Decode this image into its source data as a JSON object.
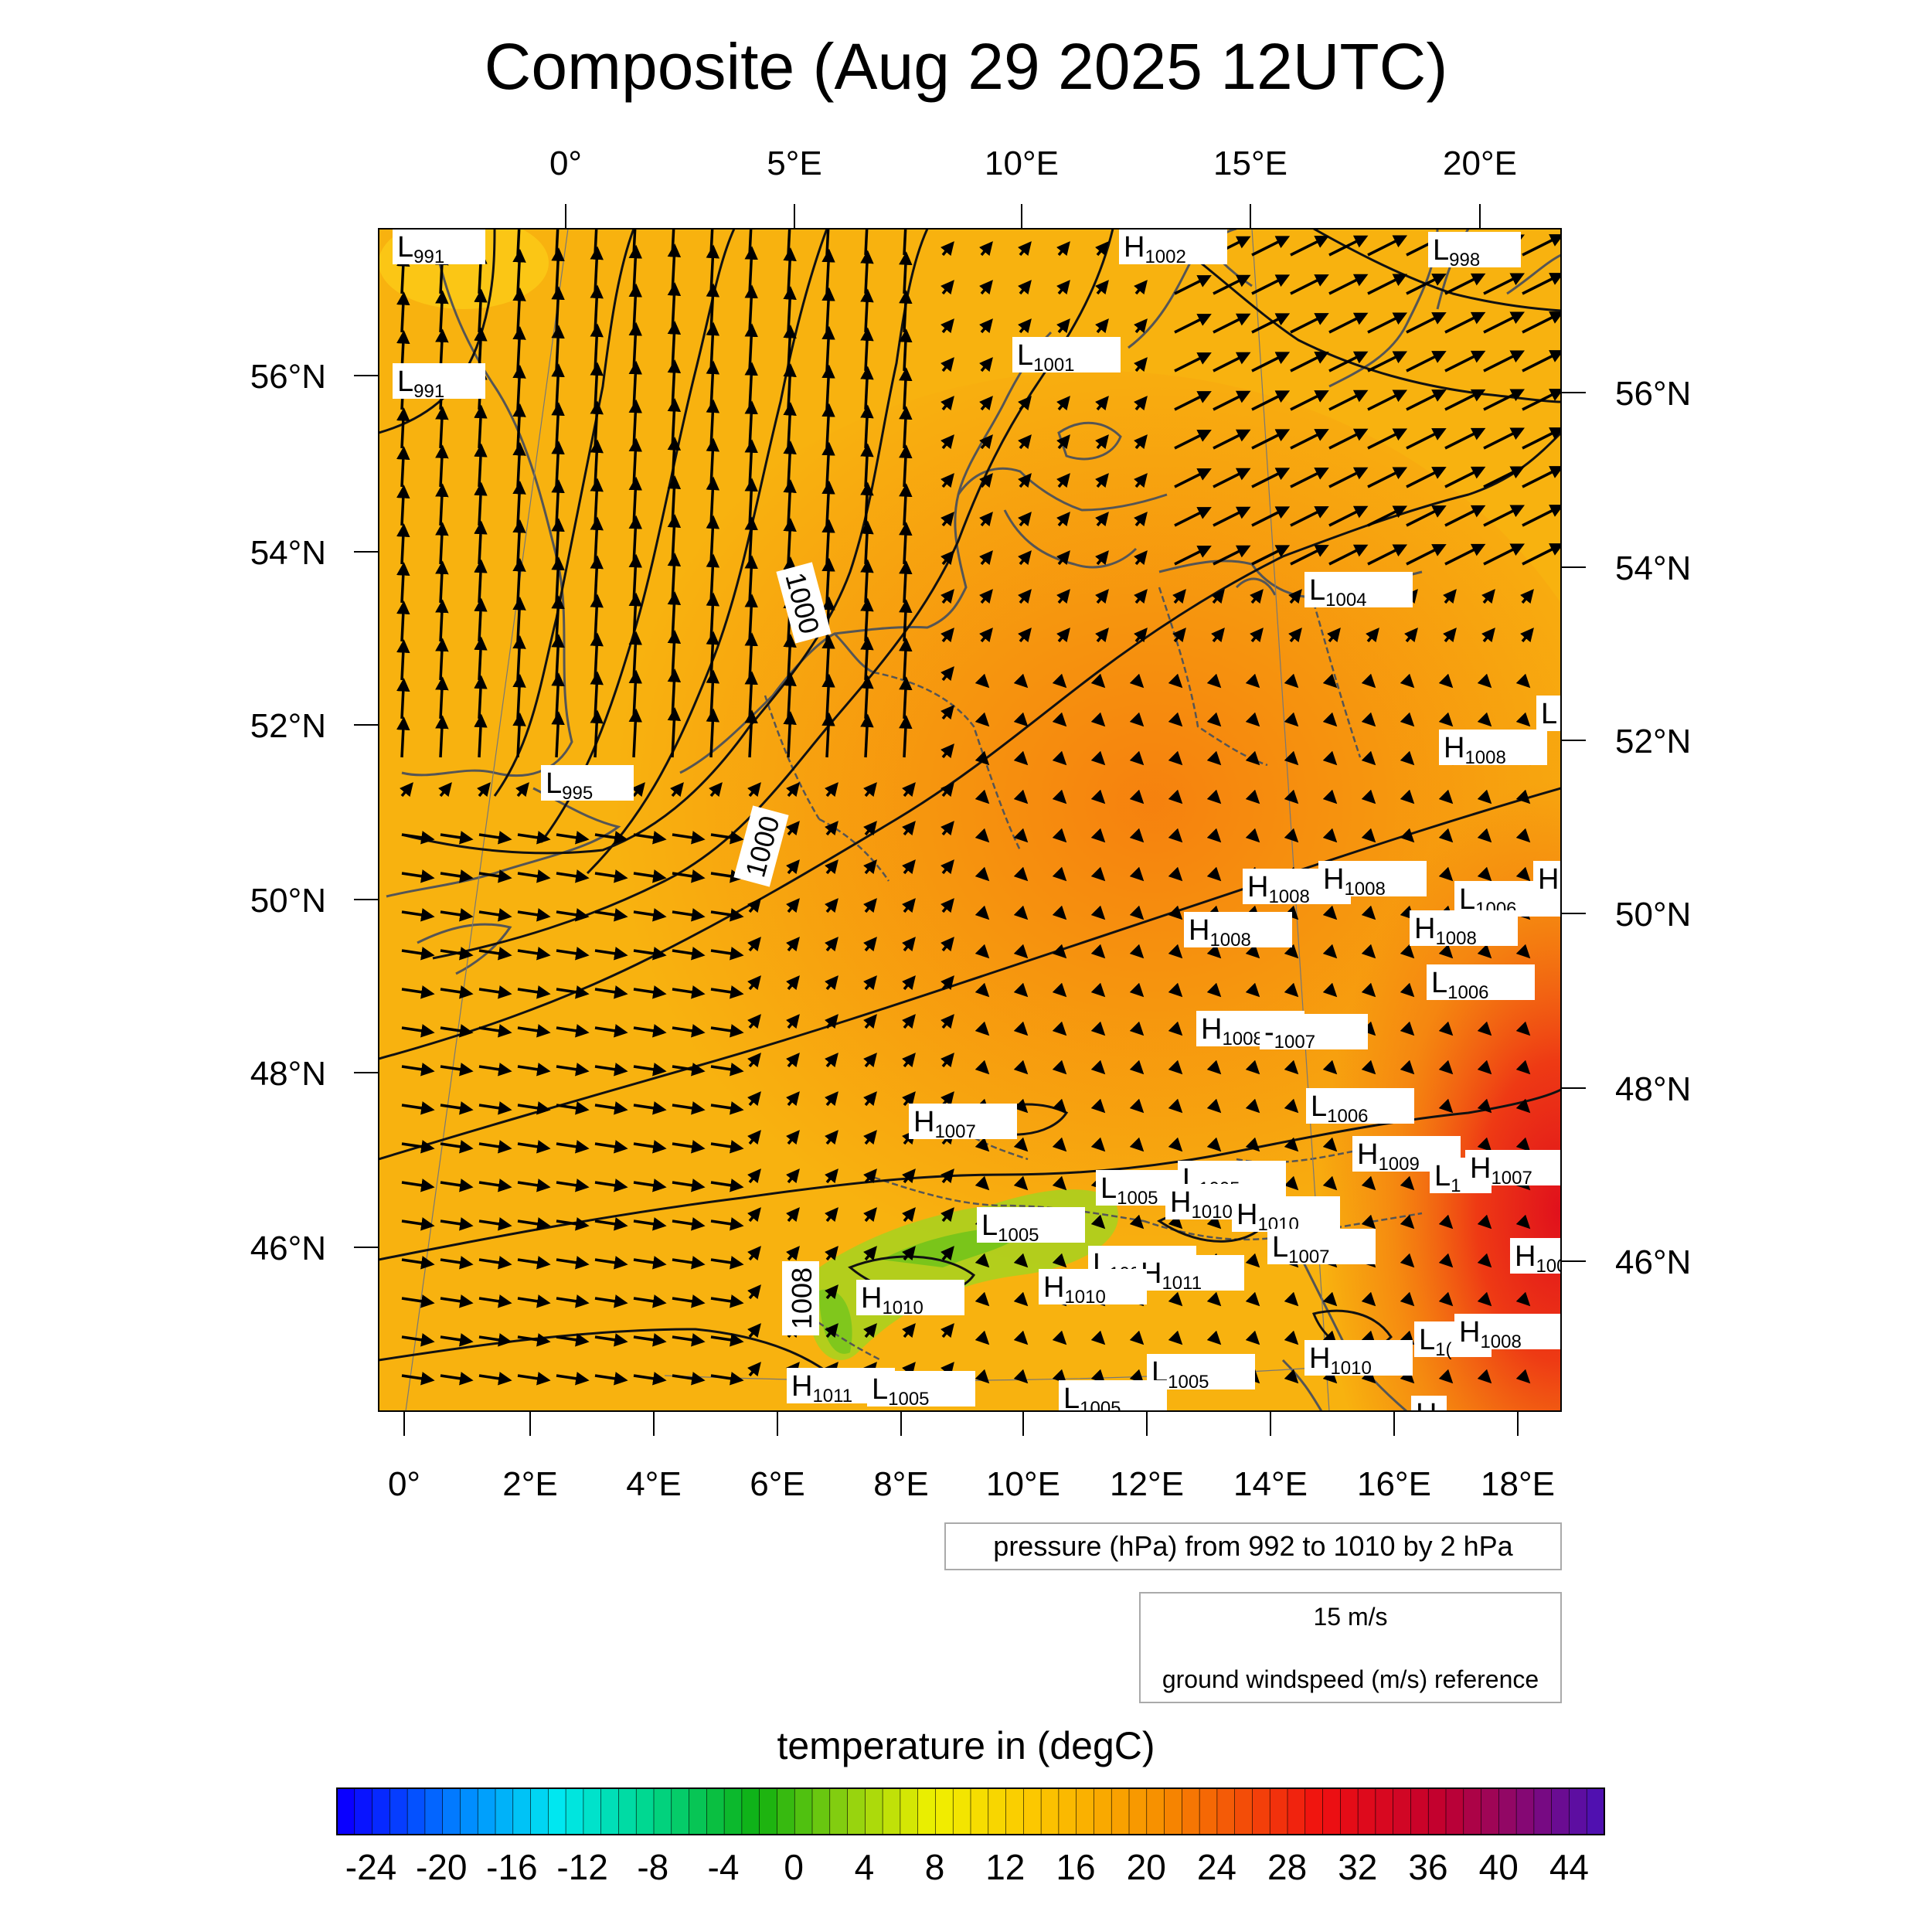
{
  "title": "Composite (Aug 29 2025 12UTC)",
  "top_lon_labels": [
    "0°",
    "5°E",
    "10°E",
    "15°E",
    "20°E"
  ],
  "bottom_lon_labels": [
    "0°",
    "2°E",
    "4°E",
    "6°E",
    "8°E",
    "10°E",
    "12°E",
    "14°E",
    "16°E",
    "18°E"
  ],
  "left_lat_labels": [
    "56°N",
    "54°N",
    "52°N",
    "50°N",
    "48°N",
    "46°N"
  ],
  "right_lat_labels": [
    "56°N",
    "54°N",
    "52°N",
    "50°N",
    "48°N",
    "46°N"
  ],
  "contour_labels": [
    "1000",
    "1000",
    "1008"
  ],
  "pressure_centers": [
    {
      "t": "L",
      "v": "991"
    },
    {
      "t": "L",
      "v": "991"
    },
    {
      "t": "H",
      "v": "1002"
    },
    {
      "t": "L",
      "v": "998"
    },
    {
      "t": "L",
      "v": "1001"
    },
    {
      "t": "L",
      "v": "1004"
    },
    {
      "t": "L",
      "v": "995"
    },
    {
      "t": "L",
      "v": ""
    },
    {
      "t": "H",
      "v": "1008"
    },
    {
      "t": "H",
      "v": "1008"
    },
    {
      "t": "H",
      "v": "1008"
    },
    {
      "t": "L",
      "v": "1006"
    },
    {
      "t": "H",
      "v": ""
    },
    {
      "t": "H",
      "v": "1008"
    },
    {
      "t": "H",
      "v": "1008"
    },
    {
      "t": "L",
      "v": "1006"
    },
    {
      "t": "H",
      "v": "1008"
    },
    {
      "t": "-",
      "v": "1007"
    },
    {
      "t": "L",
      "v": "1006"
    },
    {
      "t": "H",
      "v": "1007"
    },
    {
      "t": "H",
      "v": "1009"
    },
    {
      "t": "L",
      "v": "1"
    },
    {
      "t": "H",
      "v": "1007"
    },
    {
      "t": "L",
      "v": "1005"
    },
    {
      "t": "L",
      "v": "1005"
    },
    {
      "t": "H",
      "v": "1010"
    },
    {
      "t": "H",
      "v": "1010"
    },
    {
      "t": "L",
      "v": "1005"
    },
    {
      "t": "L",
      "v": "1007"
    },
    {
      "t": "H",
      "v": "100"
    },
    {
      "t": "L",
      "v": "1006"
    },
    {
      "t": "H",
      "v": "1011"
    },
    {
      "t": "H",
      "v": "1010"
    },
    {
      "t": "L",
      "v": "1("
    },
    {
      "t": "H",
      "v": "1008"
    },
    {
      "t": "L",
      "v": "1005"
    },
    {
      "t": "H",
      "v": "1010"
    },
    {
      "t": "H",
      "v": "1011"
    },
    {
      "t": "L",
      "v": "1005"
    },
    {
      "t": "L",
      "v": "1005"
    },
    {
      "t": "H",
      "v": ""
    },
    {
      "t": "H",
      "v": "1010"
    }
  ],
  "pressure_legend": "pressure (hPa) from 992 to 1010 by 2 hPa",
  "wind_ref_value": "15 m/s",
  "wind_ref_label": "ground windspeed (m/s) reference",
  "colorbar_title": "temperature in (degC)",
  "colorbar_ticks": [
    "-24",
    "-20",
    "-16",
    "-12",
    "-8",
    "-4",
    "0",
    "4",
    "8",
    "12",
    "16",
    "20",
    "24",
    "28",
    "32",
    "36",
    "40",
    "44"
  ],
  "colors": {
    "field_main": "#f9b20e",
    "field_warm": "#f77a0c",
    "field_hot": "#e8151a",
    "field_cool": "#9ecf1a",
    "contour": "#111111",
    "coast": "#555555"
  }
}
